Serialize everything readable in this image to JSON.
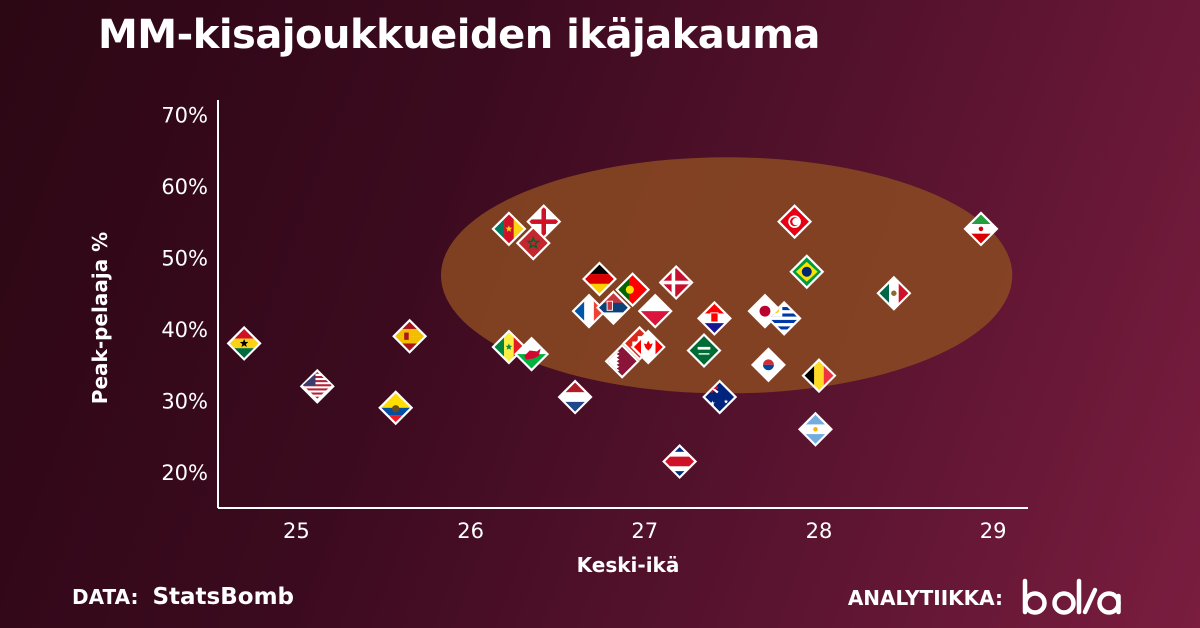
{
  "title": "MM-kisajoukkueiden ikäjakauma",
  "footer": {
    "data_label": "DATA:",
    "data_source": "StatsBomb",
    "analytics_label": "ANALYTIIKKA:",
    "brand_logo": "bolla"
  },
  "colors": {
    "background_dark": "#2c0714",
    "background_light": "#7a1d3f",
    "highlight_ellipse": "#8b4a22",
    "axis": "#ffffff"
  },
  "chart_data": {
    "type": "scatter",
    "title": "MM-kisajoukkueiden ikäjakauma",
    "xlabel": "Keski-ikä",
    "ylabel": "Peak-pelaaja %",
    "xlim": [
      24.55,
      29.2
    ],
    "ylim": [
      15,
      72
    ],
    "xticks": [
      25,
      26,
      27,
      28,
      29
    ],
    "yticks": [
      20,
      30,
      40,
      50,
      60,
      70
    ],
    "y_tick_suffix": "%",
    "grid": false,
    "highlight_region": {
      "shape": "ellipse",
      "cx": 27.47,
      "cy": 47.5,
      "rx": 1.64,
      "ry": 16.5
    },
    "points": [
      {
        "team": "Ghana",
        "flag": "ghana",
        "x": 24.7,
        "y": 38
      },
      {
        "team": "USA",
        "flag": "usa",
        "x": 25.12,
        "y": 32
      },
      {
        "team": "Ecuador",
        "flag": "ecuador",
        "x": 25.57,
        "y": 29
      },
      {
        "team": "Spain",
        "flag": "spain",
        "x": 25.65,
        "y": 39
      },
      {
        "team": "Senegal",
        "flag": "senegal",
        "x": 26.22,
        "y": 37.5
      },
      {
        "team": "Wales",
        "flag": "wales",
        "x": 26.35,
        "y": 36.5
      },
      {
        "team": "Cameroon",
        "flag": "cameroon",
        "x": 26.22,
        "y": 54
      },
      {
        "team": "England",
        "flag": "england",
        "x": 26.42,
        "y": 55
      },
      {
        "team": "Morocco",
        "flag": "morocco",
        "x": 26.36,
        "y": 52
      },
      {
        "team": "Netherlands",
        "flag": "netherlands",
        "x": 26.6,
        "y": 30.5
      },
      {
        "team": "France",
        "flag": "france",
        "x": 26.68,
        "y": 42.5
      },
      {
        "team": "Germany",
        "flag": "germany",
        "x": 26.74,
        "y": 47
      },
      {
        "team": "Serbia",
        "flag": "serbia",
        "x": 26.82,
        "y": 43
      },
      {
        "team": "Portugal",
        "flag": "portugal",
        "x": 26.93,
        "y": 45.5
      },
      {
        "team": "Qatar",
        "flag": "qatar",
        "x": 26.87,
        "y": 35.5
      },
      {
        "team": "Switzerland",
        "flag": "switzerland",
        "x": 26.97,
        "y": 38
      },
      {
        "team": "Canada",
        "flag": "canada",
        "x": 27.02,
        "y": 37.5
      },
      {
        "team": "Poland",
        "flag": "poland",
        "x": 27.06,
        "y": 42.5
      },
      {
        "team": "Denmark",
        "flag": "denmark",
        "x": 27.18,
        "y": 46.5
      },
      {
        "team": "Costa Rica",
        "flag": "costarica",
        "x": 27.2,
        "y": 21.5
      },
      {
        "team": "Croatia",
        "flag": "croatia",
        "x": 27.4,
        "y": 41.5
      },
      {
        "team": "Saudi Arabia",
        "flag": "saudi",
        "x": 27.34,
        "y": 37
      },
      {
        "team": "Australia",
        "flag": "australia",
        "x": 27.43,
        "y": 30.5
      },
      {
        "team": "Japan",
        "flag": "japan",
        "x": 27.69,
        "y": 42.5
      },
      {
        "team": "Uruguay",
        "flag": "uruguay",
        "x": 27.8,
        "y": 41.5
      },
      {
        "team": "South Korea",
        "flag": "korea",
        "x": 27.71,
        "y": 35
      },
      {
        "team": "Tunisia",
        "flag": "tunisia",
        "x": 27.86,
        "y": 55
      },
      {
        "team": "Brazil",
        "flag": "brazil",
        "x": 27.93,
        "y": 48
      },
      {
        "team": "Belgium",
        "flag": "belgium",
        "x": 28.0,
        "y": 33.5
      },
      {
        "team": "Argentina",
        "flag": "argentina",
        "x": 27.98,
        "y": 26
      },
      {
        "team": "Mexico",
        "flag": "mexico",
        "x": 28.43,
        "y": 45
      },
      {
        "team": "Iran",
        "flag": "iran",
        "x": 28.93,
        "y": 54
      }
    ]
  }
}
